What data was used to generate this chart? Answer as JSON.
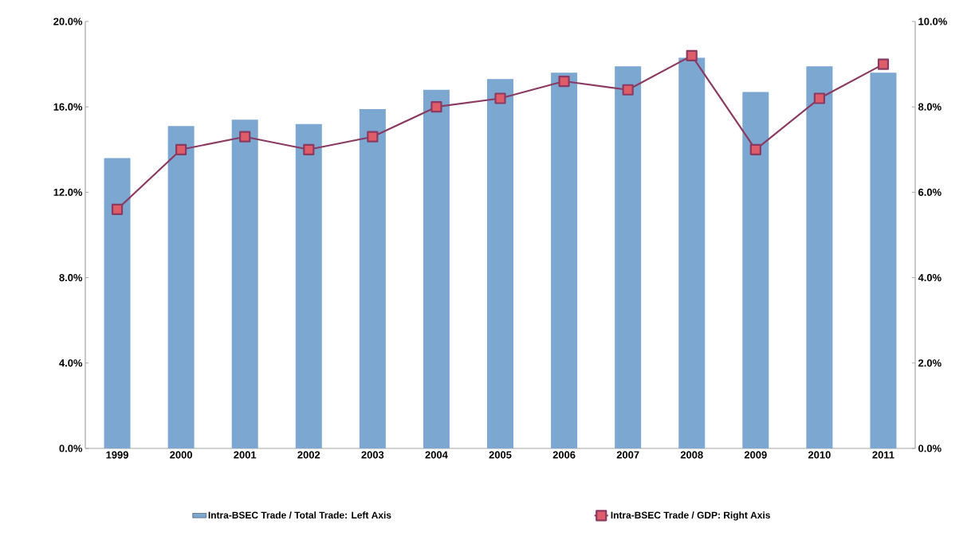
{
  "chart_data": {
    "type": "bar",
    "categories": [
      "1999",
      "2000",
      "2001",
      "2002",
      "2003",
      "2004",
      "2005",
      "2006",
      "2007",
      "2008",
      "2009",
      "2010",
      "2011"
    ],
    "series": [
      {
        "name": "Intra-BSEC Trade / Total Trade: Left Axis",
        "color": "#7ba7d0",
        "values": [
          13.6,
          15.1,
          15.4,
          15.2,
          15.9,
          16.8,
          17.3,
          17.6,
          17.9,
          18.3,
          16.7,
          17.9,
          17.6
        ]
      },
      {
        "name": "Intra-BSEC Trade / GDP: Right Axis",
        "type": "line",
        "axis": "y2",
        "marker": "square",
        "color": "#8b3a62",
        "values": [
          5.6,
          7.0,
          7.3,
          7.0,
          7.3,
          8.0,
          8.2,
          8.6,
          8.4,
          9.2,
          7.0,
          8.2,
          9.0
        ]
      }
    ],
    "ylim": [
      0,
      20
    ],
    "yticks": [
      {
        "value": 0,
        "label": "0.0%"
      },
      {
        "value": 4,
        "label": "4.0%"
      },
      {
        "value": 8,
        "label": "8.0%"
      },
      {
        "value": 12,
        "label": "12.0%"
      },
      {
        "value": 16,
        "label": "16.0%"
      },
      {
        "value": 20,
        "label": "20.0%"
      }
    ],
    "y2lim": [
      0,
      10
    ],
    "y2ticks": [
      {
        "value": 0,
        "label": "0.0%"
      },
      {
        "value": 2,
        "label": "2.0%"
      },
      {
        "value": 4,
        "label": "4.0%"
      },
      {
        "value": 6,
        "label": "6.0%"
      },
      {
        "value": 8,
        "label": "8.0%"
      },
      {
        "value": 10,
        "label": "10.0%"
      }
    ],
    "legend": "bottom"
  }
}
